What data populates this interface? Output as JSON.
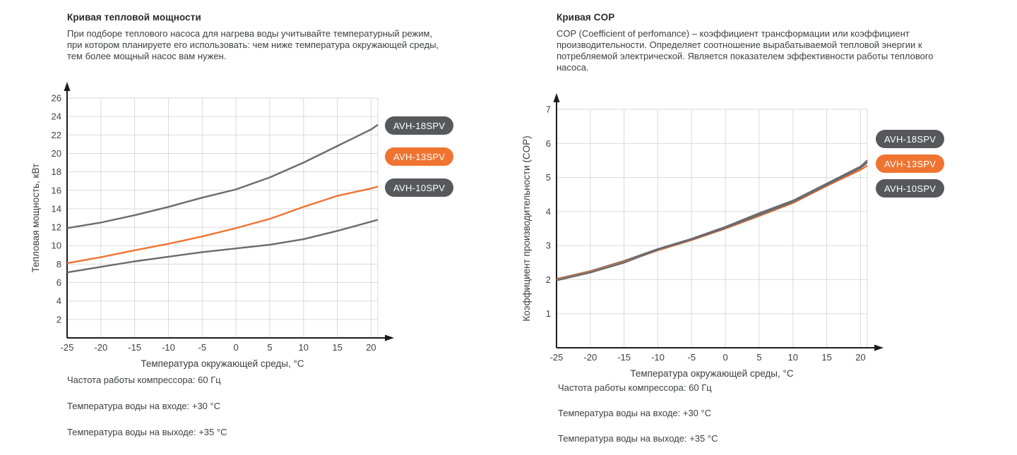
{
  "panels": {
    "left": {
      "title": "Кривая тепловой мощности",
      "description": "При подборе теплового насоса для нагрева воды учитывайте температурный режим, при котором планируете его использовать: чем ниже температура окружающей среды, тем более мощный насос вам нужен.",
      "footer": [
        "Частота работы компрессора: 60 Гц",
        "Температура воды на входе: +30 °C",
        "Температура воды на выходе: +35 °C"
      ]
    },
    "right": {
      "title": "Кривая COP",
      "description": "COP (Coefficient of perfomance) – коэффициент трансформации или коэффициент производительности. Определяет соотношение вырабатываемой тепловой энергии к потребляемой электрической. Является показателем эффективности работы теплового насоса.",
      "footer": [
        "Частота работы компрессора: 60 Гц",
        "Температура воды на входе: +30 °C",
        "Температура воды на выходе: +35 °C"
      ]
    }
  },
  "colors": {
    "accent_orange": "#EF7431",
    "pill_gray": "#57585C",
    "line_gray": "#6A6B6E",
    "grid": "#DADADA",
    "axis": "#1c1c1c",
    "tick_text": "#414042",
    "axis_label_text": "#3b3b3d"
  },
  "chart_data": [
    {
      "type": "line",
      "title": "Кривая тепловой мощности",
      "xlabel": "Температура окружающей среды, °C",
      "ylabel": "Тепловая мощность, кВт",
      "xlim": [
        -25,
        21
      ],
      "ylim": [
        0,
        26
      ],
      "x_ticks": [
        -25,
        -20,
        -15,
        -10,
        -5,
        0,
        5,
        10,
        15,
        20
      ],
      "y_ticks": [
        2,
        4,
        6,
        8,
        10,
        12,
        14,
        16,
        18,
        20,
        22,
        24,
        26
      ],
      "grid": true,
      "legend_position": "right",
      "x": [
        -25,
        -20,
        -15,
        -10,
        -5,
        0,
        5,
        10,
        15,
        20,
        21
      ],
      "series": [
        {
          "name": "AVH-18SPV",
          "line_color": "#6A6B6E",
          "pill_color": "#57585C",
          "values": [
            11.9,
            12.5,
            13.3,
            14.2,
            15.2,
            16.1,
            17.4,
            19.0,
            20.8,
            22.6,
            23.1
          ]
        },
        {
          "name": "AVH-13SPV",
          "line_color": "#EF7431",
          "pill_color": "#EF7431",
          "values": [
            8.1,
            8.75,
            9.5,
            10.2,
            11.0,
            11.9,
            12.9,
            14.2,
            15.4,
            16.2,
            16.4
          ]
        },
        {
          "name": "AVH-10SPV",
          "line_color": "#6A6B6E",
          "pill_color": "#57585C",
          "values": [
            7.1,
            7.7,
            8.3,
            8.8,
            9.3,
            9.7,
            10.1,
            10.7,
            11.6,
            12.6,
            12.8
          ]
        }
      ]
    },
    {
      "type": "line",
      "title": "Кривая COP",
      "xlabel": "Температура окружающей среды, °C",
      "ylabel": "Коэффициент производительности (COP)",
      "xlim": [
        -25,
        21
      ],
      "ylim": [
        0,
        7
      ],
      "x_ticks": [
        -25,
        -20,
        -15,
        -10,
        -5,
        0,
        5,
        10,
        15,
        20
      ],
      "y_ticks": [
        1,
        2,
        3,
        4,
        5,
        6,
        7
      ],
      "grid": true,
      "legend_position": "right",
      "x": [
        -25,
        -20,
        -15,
        -10,
        -5,
        0,
        5,
        10,
        15,
        20,
        21
      ],
      "series": [
        {
          "name": "AVH-18SPV",
          "line_color": "#6A6B6E",
          "pill_color": "#57585C",
          "values": [
            2.02,
            2.25,
            2.55,
            2.9,
            3.2,
            3.55,
            3.95,
            4.32,
            4.82,
            5.32,
            5.5
          ]
        },
        {
          "name": "AVH-13SPV",
          "line_color": "#EF7431",
          "pill_color": "#EF7431",
          "values": [
            2.0,
            2.23,
            2.52,
            2.86,
            3.16,
            3.5,
            3.87,
            4.25,
            4.75,
            5.22,
            5.35
          ]
        },
        {
          "name": "AVH-10SPV",
          "line_color": "#6A6B6E",
          "pill_color": "#57585C",
          "values": [
            1.98,
            2.21,
            2.5,
            2.88,
            3.18,
            3.52,
            3.9,
            4.28,
            4.78,
            5.28,
            5.44
          ]
        }
      ]
    }
  ]
}
